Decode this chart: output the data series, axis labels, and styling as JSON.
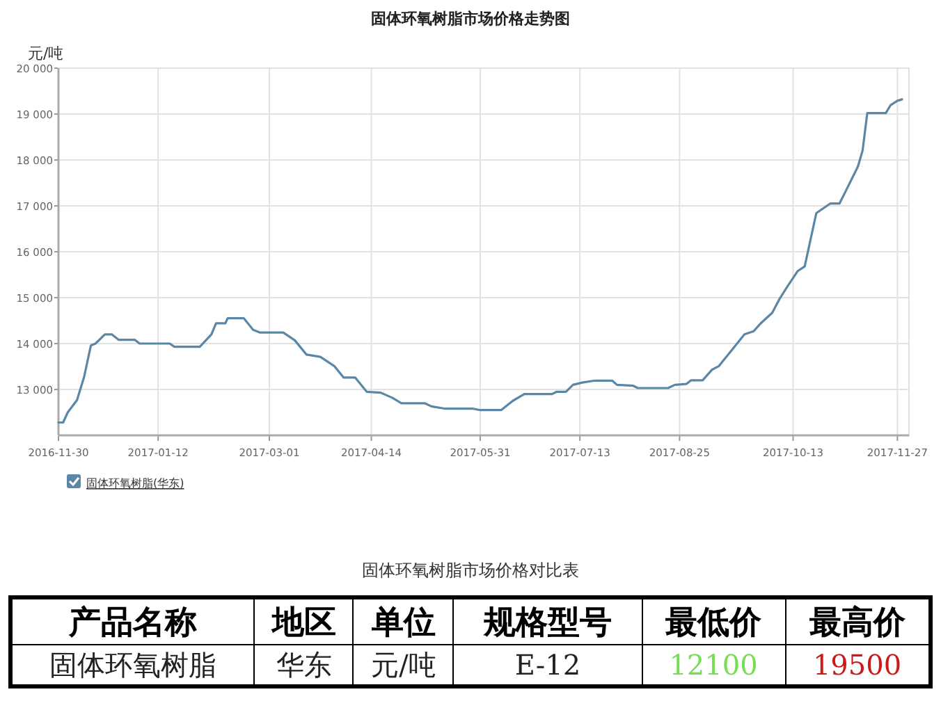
{
  "chart_data": [
    {
      "type": "line",
      "title": "固体环氧树脂市场价格走势图",
      "ylabel": "元/吨",
      "x": [
        "2016-11-30",
        "2016-12-02",
        "2016-12-04",
        "2016-12-08",
        "2016-12-11",
        "2016-12-14",
        "2016-12-16",
        "2016-12-20",
        "2016-12-23",
        "2016-12-26",
        "2017-01-02",
        "2017-01-04",
        "2017-01-17",
        "2017-01-19",
        "2017-01-30",
        "2017-02-04",
        "2017-02-06",
        "2017-02-10",
        "2017-02-11",
        "2017-02-18",
        "2017-02-22",
        "2017-02-25",
        "2017-03-07",
        "2017-03-12",
        "2017-03-17",
        "2017-03-23",
        "2017-03-29",
        "2017-04-02",
        "2017-04-07",
        "2017-04-12",
        "2017-04-18",
        "2017-04-23",
        "2017-04-27",
        "2017-05-07",
        "2017-05-10",
        "2017-05-16",
        "2017-05-19",
        "2017-05-28",
        "2017-05-31",
        "2017-06-09",
        "2017-06-14",
        "2017-06-19",
        "2017-07-01",
        "2017-07-03",
        "2017-07-07",
        "2017-07-10",
        "2017-07-14",
        "2017-07-19",
        "2017-07-27",
        "2017-07-29",
        "2017-08-05",
        "2017-08-07",
        "2017-08-20",
        "2017-08-23",
        "2017-08-28",
        "2017-08-30",
        "2017-09-04",
        "2017-09-08",
        "2017-09-11",
        "2017-09-15",
        "2017-09-19",
        "2017-09-22",
        "2017-09-26",
        "2017-09-29",
        "2017-10-04",
        "2017-10-07",
        "2017-10-11",
        "2017-10-15",
        "2017-10-18",
        "2017-10-23",
        "2017-10-29",
        "2017-11-02",
        "2017-11-05",
        "2017-11-10",
        "2017-11-12",
        "2017-11-14",
        "2017-11-22",
        "2017-11-24",
        "2017-11-27",
        "2017-11-29"
      ],
      "series": [
        {
          "name": "固体环氧树脂(华东)",
          "color": "#5b87a6",
          "values": [
            12280,
            12280,
            12500,
            12770,
            13260,
            13960,
            14000,
            14200,
            14200,
            14080,
            14080,
            14000,
            14000,
            13930,
            13930,
            14200,
            14440,
            14440,
            14550,
            14550,
            14300,
            14240,
            14240,
            14070,
            13760,
            13710,
            13510,
            13260,
            13260,
            12950,
            12930,
            12820,
            12700,
            12700,
            12630,
            12580,
            12580,
            12580,
            12550,
            12550,
            12750,
            12900,
            12900,
            12950,
            12950,
            13100,
            13150,
            13190,
            13190,
            13100,
            13080,
            13030,
            13030,
            13100,
            13120,
            13200,
            13200,
            13430,
            13510,
            13760,
            14010,
            14200,
            14270,
            14440,
            14670,
            14960,
            15280,
            15580,
            15680,
            16840,
            17050,
            17050,
            17350,
            17860,
            18210,
            19020,
            19020,
            19190,
            19290,
            19320
          ]
        }
      ],
      "xlim": [
        "2016-11-30",
        "2017-12-02"
      ],
      "xticks": [
        "2016-11-30",
        "2017-01-12",
        "2017-03-01",
        "2017-04-14",
        "2017-05-31",
        "2017-07-13",
        "2017-08-25",
        "2017-10-13",
        "2017-11-27"
      ],
      "ylim": [
        12000,
        20000
      ],
      "yticks": [
        {
          "value": 13000,
          "label": "13 000"
        },
        {
          "value": 14000,
          "label": "14 000"
        },
        {
          "value": 15000,
          "label": "15 000"
        },
        {
          "value": 16000,
          "label": "16 000"
        },
        {
          "value": 17000,
          "label": "17 000"
        },
        {
          "value": 18000,
          "label": "18 000"
        },
        {
          "value": 19000,
          "label": "19 000"
        },
        {
          "value": 20000,
          "label": "20 000"
        }
      ],
      "grid": true,
      "legend": "bottom left",
      "marker": "none",
      "line_style": "solid"
    },
    {
      "type": "other",
      "title": "固体环氧树脂市场价格对比表",
      "categories": [
        "产品名称",
        "地区",
        "单位",
        "规格型号",
        "最低价",
        "最高价"
      ],
      "annotations": [
        "固体环氧树脂",
        "华东",
        "元/吨",
        "E-12",
        "12100",
        "19500"
      ],
      "colors": [
        null,
        null,
        null,
        null,
        "#77dd55",
        "#cc1a1a"
      ]
    }
  ]
}
